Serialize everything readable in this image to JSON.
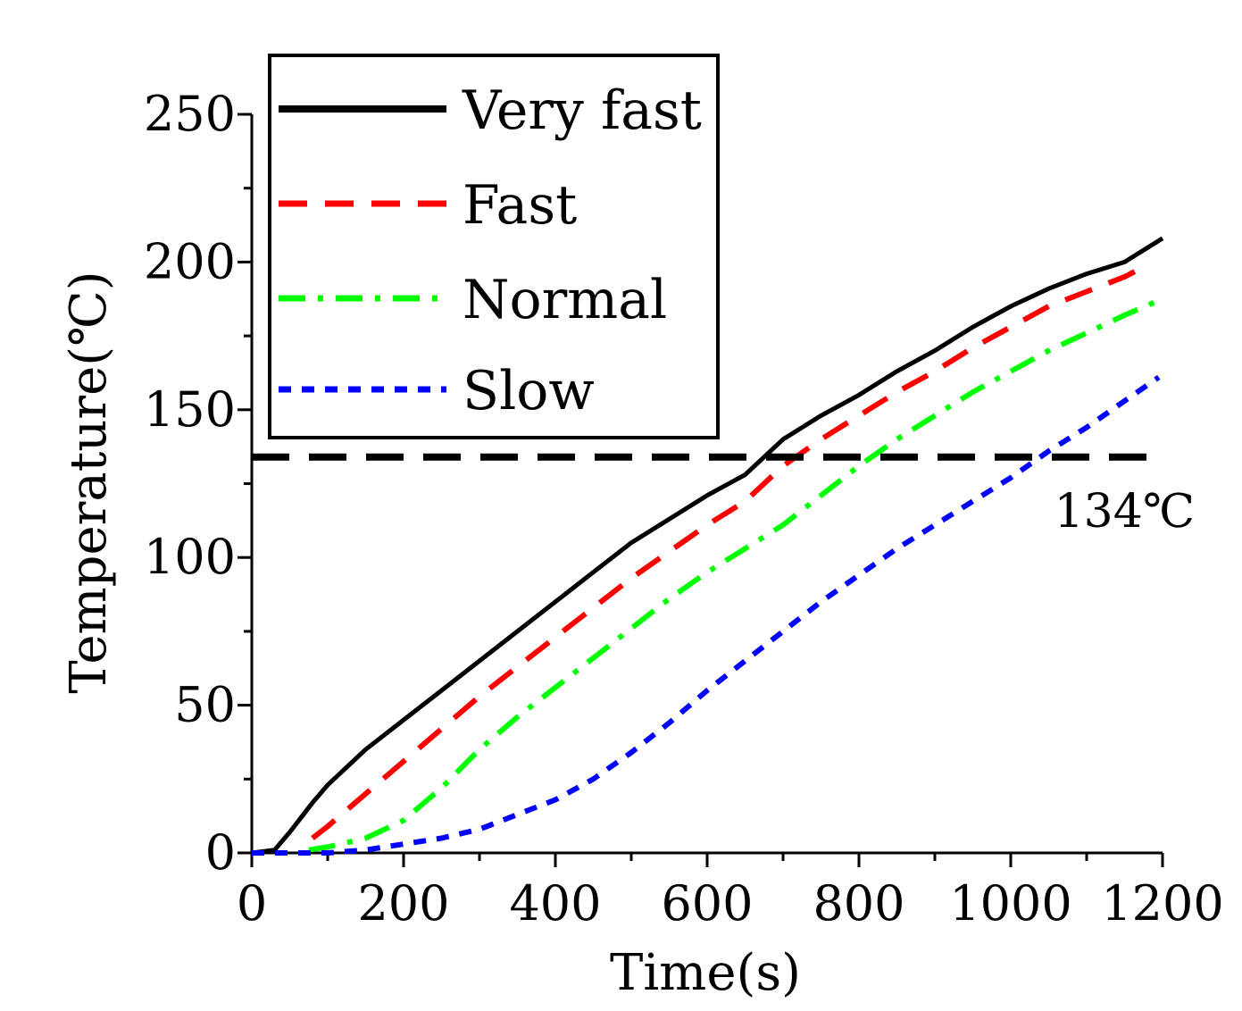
{
  "chart_data": {
    "type": "line",
    "title": "",
    "xlabel": "Time(s)",
    "ylabel": "Temperature(℃)",
    "xlim": [
      0,
      1200
    ],
    "ylim": [
      0,
      250
    ],
    "xticks": [
      "0",
      "200",
      "400",
      "600",
      "800",
      "1000",
      "1200"
    ],
    "yticks": [
      "0",
      "50",
      "100",
      "150",
      "200",
      "250"
    ],
    "grid": false,
    "legend_position": "top-left",
    "series": [
      {
        "name": "Very fast",
        "color": "#000000",
        "style": "solid",
        "x": [
          0,
          30,
          50,
          80,
          100,
          150,
          200,
          250,
          300,
          350,
          400,
          450,
          500,
          550,
          600,
          650,
          700,
          750,
          800,
          850,
          900,
          950,
          1000,
          1050,
          1100,
          1150,
          1200
        ],
        "y": [
          0,
          1,
          7,
          17,
          23,
          35,
          45,
          55,
          65,
          75,
          85,
          95,
          105,
          113,
          121,
          128,
          140,
          148,
          155,
          163,
          170,
          178,
          185,
          191,
          196,
          200,
          208
        ]
      },
      {
        "name": "Fast",
        "color": "#ff0000",
        "style": "dash",
        "x": [
          80,
          100,
          150,
          200,
          250,
          300,
          350,
          400,
          450,
          500,
          550,
          600,
          650,
          700,
          750,
          800,
          850,
          900,
          950,
          1000,
          1050,
          1100,
          1150,
          1180
        ],
        "y": [
          5,
          9,
          20,
          31,
          42,
          53,
          63,
          73,
          83,
          93,
          102,
          111,
          119,
          131,
          140,
          148,
          156,
          163,
          171,
          178,
          185,
          190,
          195,
          199
        ]
      },
      {
        "name": "Normal",
        "color": "#00ff00",
        "style": "dashdot",
        "x": [
          75,
          100,
          150,
          200,
          250,
          300,
          350,
          400,
          450,
          500,
          550,
          600,
          650,
          700,
          750,
          800,
          850,
          900,
          950,
          1000,
          1050,
          1100,
          1150,
          1195
        ],
        "y": [
          1,
          2,
          5,
          11,
          22,
          35,
          46,
          56,
          66,
          76,
          86,
          95,
          103,
          111,
          121,
          131,
          140,
          148,
          156,
          163,
          170,
          176,
          182,
          187
        ]
      },
      {
        "name": "Slow",
        "color": "#0000ff",
        "style": "dot",
        "x": [
          0,
          100,
          150,
          200,
          250,
          300,
          350,
          400,
          450,
          500,
          550,
          600,
          650,
          700,
          750,
          800,
          850,
          900,
          950,
          1000,
          1050,
          1100,
          1150,
          1195
        ],
        "y": [
          0,
          0,
          1,
          3,
          5,
          8,
          13,
          18,
          25,
          34,
          44,
          55,
          65,
          75,
          85,
          94,
          103,
          111,
          119,
          127,
          136,
          144,
          153,
          161
        ]
      }
    ],
    "annotations": [
      {
        "type": "hline",
        "y": 134,
        "color": "#000000",
        "style": "dash",
        "label": "134℃"
      }
    ]
  }
}
